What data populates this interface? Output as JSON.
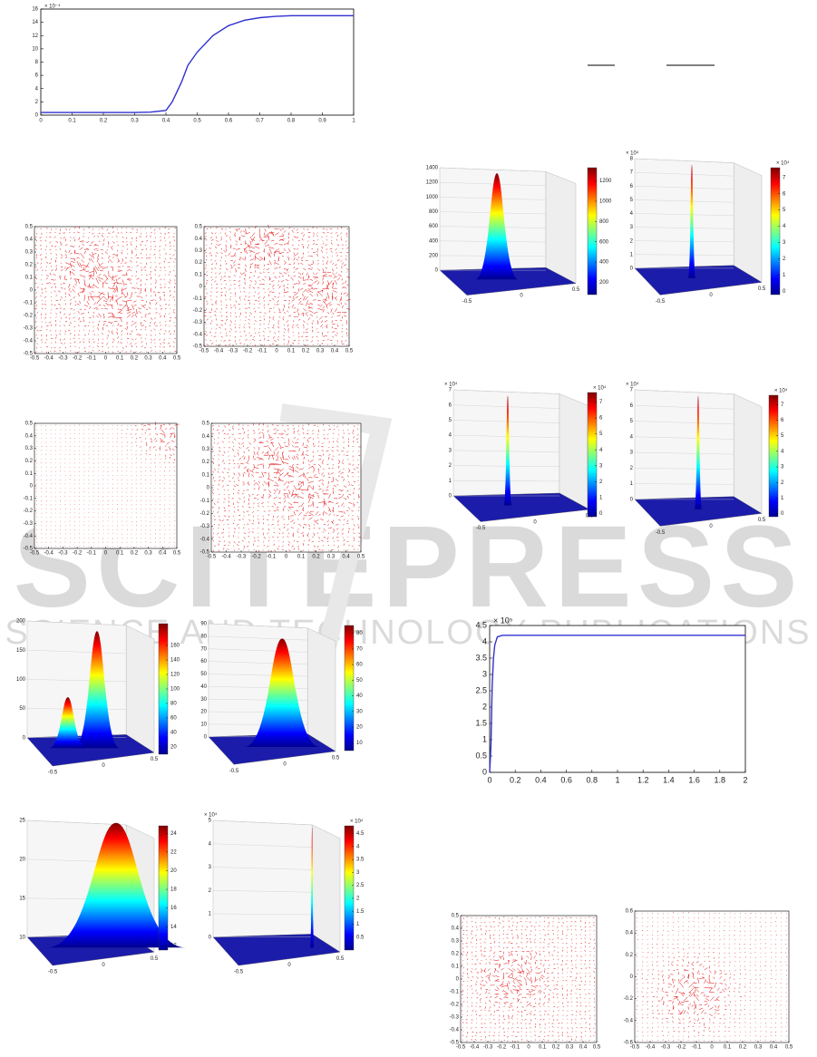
{
  "watermark": {
    "title": "SCITEPRESS",
    "subtitle": "SCIENCE AND TECHNOLOGY PUBLICATIONS"
  },
  "chart_data": [
    {
      "type": "line",
      "y_scale_label": "× 10⁻⁴",
      "x": [
        0,
        0.05,
        0.1,
        0.15,
        0.2,
        0.25,
        0.3,
        0.35,
        0.4,
        0.42,
        0.45,
        0.47,
        0.5,
        0.55,
        0.6,
        0.65,
        0.7,
        0.75,
        0.8,
        0.85,
        0.9,
        0.95,
        1
      ],
      "values": [
        0.4,
        0.4,
        0.4,
        0.4,
        0.4,
        0.4,
        0.4,
        0.45,
        0.7,
        2,
        5,
        7.5,
        9.5,
        12,
        13.5,
        14.3,
        14.7,
        14.9,
        15,
        15,
        15,
        15,
        15
      ],
      "color": "#3030d0",
      "xlim": [
        0,
        1
      ],
      "xticks": [
        0,
        0.1,
        0.2,
        0.3,
        0.4,
        0.5,
        0.6,
        0.7,
        0.8,
        0.9,
        1
      ],
      "ylim": [
        0,
        16
      ],
      "yticks": [
        0,
        2,
        4,
        6,
        8,
        10,
        12,
        14,
        16
      ]
    },
    {
      "type": "line",
      "y_scale_label": "× 10⁵",
      "x": [
        0,
        0.01,
        0.02,
        0.03,
        0.04,
        0.06,
        0.1,
        0.5,
        1,
        1.5,
        2
      ],
      "values": [
        0,
        0.8,
        2.7,
        3.5,
        3.9,
        4.15,
        4.2,
        4.2,
        4.2,
        4.2,
        4.2
      ],
      "color": "#3030d0",
      "xlim": [
        0,
        2
      ],
      "xticks": [
        0,
        0.2,
        0.4,
        0.6,
        0.8,
        1,
        1.2,
        1.4,
        1.6,
        1.8,
        2
      ],
      "ylim": [
        0,
        4.5
      ],
      "yticks": [
        0,
        0.5,
        1,
        1.5,
        2,
        2.5,
        3,
        3.5,
        4,
        4.5
      ]
    }
  ],
  "quivers": [
    {
      "xticks": [
        -0.5,
        -0.4,
        -0.3,
        -0.2,
        -0.1,
        0,
        0.1,
        0.2,
        0.3,
        0.4,
        0.5
      ],
      "yticks": [
        -0.5,
        -0.4,
        -0.3,
        -0.2,
        -0.1,
        0,
        0.1,
        0.2,
        0.3,
        0.4,
        0.5
      ]
    },
    {
      "xticks": [
        -0.5,
        -0.4,
        -0.3,
        -0.2,
        -0.1,
        0,
        0.1,
        0.2,
        0.3,
        0.4,
        0.5
      ],
      "yticks": [
        -0.5,
        -0.4,
        -0.3,
        -0.2,
        -0.1,
        0,
        0.1,
        0.2,
        0.3,
        0.4,
        0.5
      ]
    },
    {
      "xticks": [
        -0.5,
        -0.4,
        -0.3,
        -0.2,
        -0.1,
        0,
        0.1,
        0.2,
        0.3,
        0.4,
        0.5
      ],
      "yticks": [
        -0.5,
        -0.4,
        -0.3,
        -0.2,
        -0.1,
        0,
        0.1,
        0.2,
        0.3,
        0.4,
        0.5
      ]
    },
    {
      "xticks": [
        -0.5,
        -0.4,
        -0.3,
        -0.2,
        -0.1,
        0,
        0.1,
        0.2,
        0.3,
        0.4,
        0.5
      ],
      "yticks": [
        -0.5,
        -0.4,
        -0.3,
        -0.2,
        -0.1,
        0,
        0.1,
        0.2,
        0.3,
        0.4,
        0.5
      ]
    },
    {
      "xticks": [
        -0.5,
        -0.4,
        -0.3,
        -0.2,
        -0.1,
        0,
        0.1,
        0.2,
        0.3,
        0.4,
        0.5
      ],
      "yticks": [
        -0.5,
        -0.4,
        -0.3,
        -0.2,
        -0.1,
        0,
        0.1,
        0.2,
        0.3,
        0.4,
        0.5
      ]
    },
    {
      "xticks": [
        -0.5,
        -0.4,
        -0.3,
        -0.2,
        -0.1,
        0,
        0.1,
        0.2,
        0.3,
        0.4,
        0.5
      ],
      "yticks": [
        -0.6,
        -0.4,
        -0.2,
        0,
        0.2,
        0.4,
        0.6
      ]
    }
  ],
  "surfaces": [
    {
      "xticks": [
        -0.5,
        0,
        0.5
      ],
      "zticks": [
        0,
        200,
        400,
        600,
        800,
        1000,
        1200,
        1400
      ],
      "cblim": [
        80,
        1330
      ],
      "cbticks": [
        200,
        400,
        600,
        800,
        1000,
        1200
      ]
    },
    {
      "xticks": [
        -0.5,
        0,
        0.5
      ],
      "z_scale_label": "× 10⁴",
      "zticks": [
        0,
        1,
        2,
        3,
        4,
        5,
        6,
        7,
        8
      ],
      "cb_scale_label": "× 10⁴",
      "cblim": [
        -0.2,
        7.6
      ],
      "cbticks": [
        0,
        1,
        2,
        3,
        4,
        5,
        6,
        7
      ]
    },
    {
      "xticks": [
        -0.5,
        0,
        0.5
      ],
      "z_scale_label": "× 10⁴",
      "zticks": [
        0,
        1,
        2,
        3,
        4,
        5,
        6,
        7
      ],
      "cb_scale_label": "× 10⁴",
      "cblim": [
        -0.2,
        7.6
      ],
      "cbticks": [
        0,
        1,
        2,
        3,
        4,
        5,
        6,
        7
      ]
    },
    {
      "xticks": [
        -0.5,
        0,
        0.5
      ],
      "z_scale_label": "× 10⁴",
      "zticks": [
        0,
        1,
        2,
        3,
        4,
        5,
        6,
        7
      ],
      "cb_scale_label": "× 10⁴",
      "cblim": [
        -0.2,
        7.6
      ],
      "cbticks": [
        0,
        1,
        2,
        3,
        4,
        5,
        6,
        7
      ]
    },
    {
      "xticks": [
        -0.5,
        0,
        0.5
      ],
      "zticks": [
        0,
        50,
        100,
        150,
        200
      ],
      "cblim": [
        10,
        190
      ],
      "cbticks": [
        20,
        40,
        60,
        80,
        100,
        120,
        140,
        160
      ]
    },
    {
      "xticks": [
        -0.5,
        0,
        0.5
      ],
      "zticks": [
        0,
        10,
        20,
        30,
        40,
        50,
        60,
        70,
        80,
        90
      ],
      "cblim": [
        5,
        85
      ],
      "cbticks": [
        10,
        20,
        30,
        40,
        50,
        60,
        70,
        80
      ]
    },
    {
      "xticks": [
        -0.5,
        0,
        0.5
      ],
      "zticks": [
        10,
        15,
        20,
        25
      ],
      "cblim": [
        11.5,
        24.8
      ],
      "cbticks": [
        12,
        14,
        16,
        18,
        20,
        22,
        24
      ]
    },
    {
      "xticks": [
        -0.5,
        0,
        0.5
      ],
      "z_scale_label": "× 10⁴",
      "zticks": [
        0,
        1,
        2,
        3,
        4,
        5
      ],
      "cb_scale_label": "× 10⁴",
      "cblim": [
        0,
        4.8
      ],
      "cbticks": [
        0.5,
        1,
        1.5,
        2,
        2.5,
        3,
        3.5,
        4,
        4.5
      ]
    }
  ]
}
